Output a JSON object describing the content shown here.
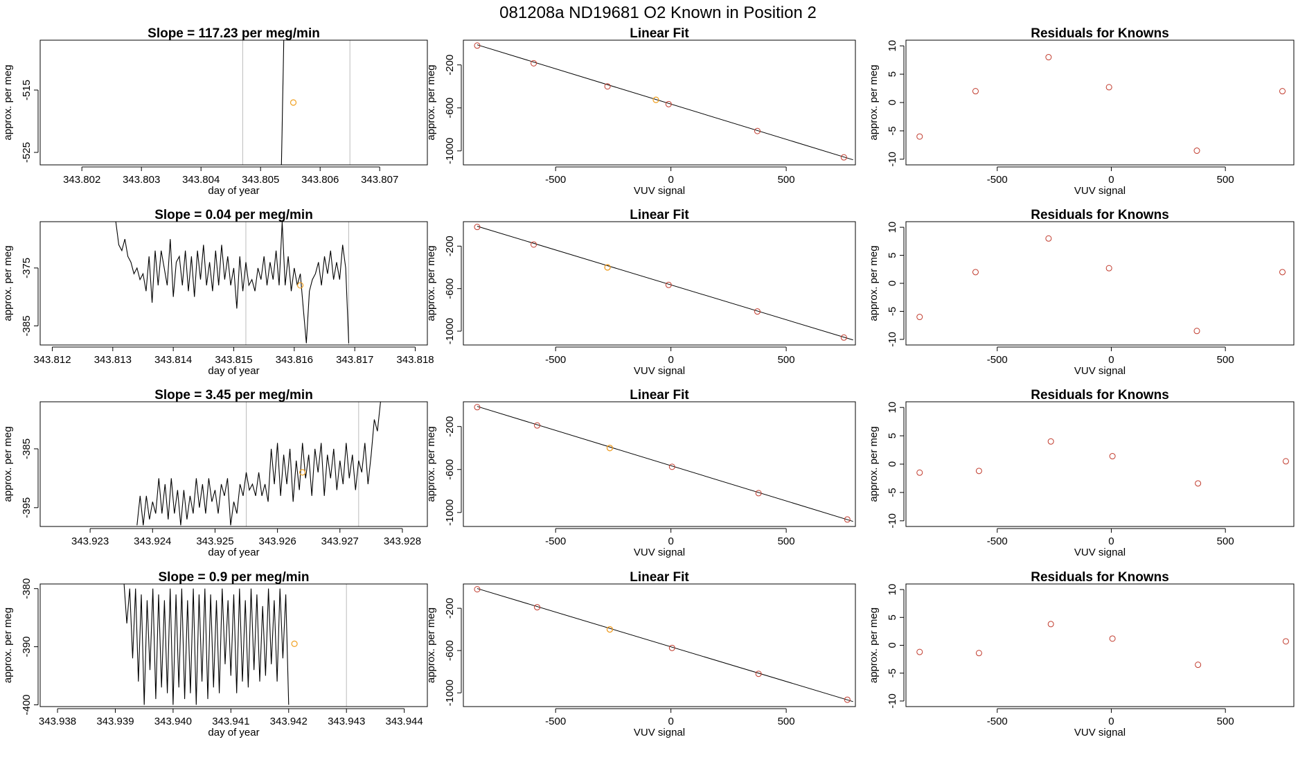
{
  "figure_title": "081208a      ND19681    O2 Known in Position  2",
  "colors": {
    "series": "#000000",
    "known_point": "#c0392b",
    "highlight_point": "#f0a020",
    "vline": "#bbbbbb",
    "frame": "#000000"
  },
  "chart_data": [
    {
      "type": "line",
      "title": "Slope =  117.23  per meg/min",
      "xlabel": "day of year",
      "ylabel": "approx. per meg",
      "xlim": [
        343.8013,
        343.8078
      ],
      "ylim": [
        -527,
        -507
      ],
      "xticks": [
        343.802,
        343.803,
        343.804,
        343.805,
        343.806,
        343.807
      ],
      "xtick_labels": [
        "343.802",
        "343.803",
        "343.804",
        "343.805",
        "343.806",
        "343.807"
      ],
      "yticks": [
        -525,
        -515
      ],
      "ytick_labels": [
        "-525",
        "-515"
      ],
      "vlines": [
        343.8047,
        343.8065
      ],
      "trace": {
        "x0": 343.80535,
        "dx": 1e-05,
        "y": [
          -527,
          -522,
          -517,
          -512,
          -507
        ]
      },
      "highlight": {
        "x": 343.80555,
        "y": -517
      }
    },
    {
      "type": "line",
      "title": "Slope =  0.04  per meg/min",
      "xlabel": "day of year",
      "ylabel": "approx. per meg",
      "xlim": [
        343.8118,
        343.8182
      ],
      "ylim": [
        -388.3,
        -367.0
      ],
      "xticks": [
        343.812,
        343.813,
        343.814,
        343.815,
        343.816,
        343.817,
        343.818
      ],
      "xtick_labels": [
        "343.812",
        "343.813",
        "343.814",
        "343.815",
        "343.816",
        "343.817",
        "343.818"
      ],
      "yticks": [
        -385,
        -375
      ],
      "ytick_labels": [
        "-385",
        "-375"
      ],
      "vlines": [
        343.8152,
        343.8169
      ],
      "trace": {
        "x0": 343.81305,
        "dx": 5e-05,
        "y": [
          -367,
          -371,
          -372,
          -370,
          -373,
          -374,
          -376,
          -375,
          -377,
          -376,
          -379,
          -373,
          -381,
          -372,
          -378,
          -372,
          -375,
          -378,
          -370,
          -380,
          -374,
          -373,
          -378,
          -372,
          -379,
          -373,
          -380,
          -372,
          -377,
          -371,
          -378,
          -374,
          -379,
          -372,
          -378,
          -371,
          -377,
          -373,
          -378,
          -375,
          -382,
          -373,
          -379,
          -374,
          -378,
          -377,
          -379,
          -375,
          -377,
          -373,
          -378,
          -374,
          -377,
          -372,
          -378,
          -367,
          -378,
          -373,
          -379,
          -375,
          -378,
          -376,
          -382,
          -388,
          -379,
          -377,
          -376,
          -374,
          -378,
          -373,
          -376,
          -372,
          -377,
          -374,
          -377,
          -371,
          -375,
          -388
        ]
      },
      "highlight": {
        "x": 343.8161,
        "y": -378
      }
    },
    {
      "type": "line",
      "title": "Slope =  3.45  per meg/min",
      "xlabel": "day of year",
      "ylabel": "approx. per meg",
      "xlim": [
        343.9222,
        343.9284
      ],
      "ylim": [
        -398.2,
        -377.0
      ],
      "xticks": [
        343.923,
        343.924,
        343.925,
        343.926,
        343.927,
        343.928
      ],
      "xtick_labels": [
        "343.923",
        "343.924",
        "343.925",
        "343.926",
        "343.927",
        "343.928"
      ],
      "yticks": [
        -395,
        -385
      ],
      "ytick_labels": [
        "-395",
        "-385"
      ],
      "vlines": [
        343.9255,
        343.9273
      ],
      "trace": {
        "x0": 343.92375,
        "dx": 5e-05,
        "y": [
          -398,
          -393,
          -398,
          -393,
          -397,
          -394,
          -396,
          -390,
          -396,
          -391,
          -397,
          -390,
          -396,
          -392,
          -398,
          -392,
          -397,
          -393,
          -396,
          -390,
          -395,
          -391,
          -396,
          -390,
          -394,
          -392,
          -396,
          -391,
          -393,
          -390,
          -398,
          -394,
          -396,
          -391,
          -393,
          -389,
          -392,
          -391,
          -393,
          -389,
          -393,
          -391,
          -394,
          -385,
          -391,
          -384,
          -393,
          -386,
          -391,
          -385,
          -394,
          -387,
          -392,
          -384,
          -390,
          -386,
          -393,
          -385,
          -389,
          -384,
          -393,
          -386,
          -390,
          -385,
          -392,
          -387,
          -391,
          -384,
          -390,
          -386,
          -392,
          -387,
          -389,
          -384,
          -391,
          -386,
          -380,
          -382,
          -377
        ]
      },
      "highlight": {
        "x": 343.9264,
        "y": -389
      }
    },
    {
      "type": "line",
      "title": "Slope =  0.9  per meg/min",
      "xlabel": "day of year",
      "ylabel": "approx. per meg",
      "xlim": [
        343.9377,
        343.9444
      ],
      "ylim": [
        -400.3,
        -379.2
      ],
      "xticks": [
        343.938,
        343.939,
        343.94,
        343.941,
        343.942,
        343.943,
        343.944
      ],
      "xtick_labels": [
        "343.938",
        "343.939",
        "343.940",
        "343.941",
        "343.942",
        "343.943",
        "343.944"
      ],
      "yticks": [
        -400,
        -390,
        -380
      ],
      "ytick_labels": [
        "-400",
        "-390",
        "-380"
      ],
      "vlines": [
        343.943
      ],
      "trace": {
        "x0": 343.93915,
        "dx": 5e-05,
        "y": [
          -379,
          -386,
          -380,
          -392,
          -380,
          -396,
          -381,
          -400,
          -382,
          -394,
          -380,
          -399,
          -381,
          -397,
          -382,
          -398,
          -380,
          -400,
          -381,
          -397,
          -380,
          -399,
          -382,
          -398,
          -380,
          -400,
          -381,
          -396,
          -380,
          -399,
          -381,
          -397,
          -382,
          -398,
          -380,
          -393,
          -382,
          -395,
          -381,
          -398,
          -380,
          -396,
          -382,
          -397,
          -380,
          -394,
          -381,
          -396,
          -383,
          -395,
          -380,
          -393,
          -382,
          -396,
          -380,
          -392,
          -381,
          -400
        ]
      },
      "highlight": {
        "x": 343.9421,
        "y": -389.5
      }
    },
    {
      "type": "scatter",
      "title": "Linear Fit",
      "xlabel": "VUV signal",
      "ylabel": "approx. per meg",
      "xlim": [
        -900,
        800
      ],
      "ylim": [
        -1130,
        30
      ],
      "xticks": [
        -500,
        0,
        500
      ],
      "xtick_labels": [
        "-500",
        "0",
        "500"
      ],
      "yticks": [
        -1000,
        -600,
        -200
      ],
      "ytick_labels": [
        "-1000",
        "-600",
        "-200"
      ],
      "fit": {
        "x": [
          -840,
          790
        ],
        "y": [
          -13,
          -1083
        ]
      },
      "points": {
        "x": [
          -840,
          -595,
          -275,
          -10,
          375,
          750
        ],
        "y": [
          -20,
          -185,
          -400,
          -565,
          -815,
          -1060
        ]
      },
      "highlight": {
        "x": -65,
        "y": -525
      }
    },
    {
      "type": "scatter",
      "title": "Linear Fit",
      "xlabel": "VUV signal",
      "ylabel": "approx. per meg",
      "xlim": [
        -900,
        800
      ],
      "ylim": [
        -1130,
        30
      ],
      "xticks": [
        -500,
        0,
        500
      ],
      "xtick_labels": [
        "-500",
        "0",
        "500"
      ],
      "yticks": [
        -1000,
        -600,
        -200
      ],
      "ytick_labels": [
        "-1000",
        "-600",
        "-200"
      ],
      "fit": {
        "x": [
          -840,
          790
        ],
        "y": [
          -13,
          -1083
        ]
      },
      "points": {
        "x": [
          -840,
          -595,
          -275,
          -10,
          375,
          750
        ],
        "y": [
          -20,
          -185,
          -400,
          -565,
          -815,
          -1060
        ]
      },
      "highlight": {
        "x": -275,
        "y": -400
      }
    },
    {
      "type": "scatter",
      "title": "Linear Fit",
      "xlabel": "VUV signal",
      "ylabel": "approx. per meg",
      "xlim": [
        -900,
        800
      ],
      "ylim": [
        -1130,
        30
      ],
      "xticks": [
        -500,
        0,
        500
      ],
      "xtick_labels": [
        "-500",
        "0",
        "500"
      ],
      "yticks": [
        -1000,
        -600,
        -200
      ],
      "ytick_labels": [
        "-1000",
        "-600",
        "-200"
      ],
      "fit": {
        "x": [
          -840,
          790
        ],
        "y": [
          -13,
          -1083
        ]
      },
      "points": {
        "x": [
          -840,
          -580,
          -265,
          5,
          380,
          765
        ],
        "y": [
          -20,
          -190,
          -400,
          -575,
          -820,
          -1065
        ]
      },
      "highlight": {
        "x": -265,
        "y": -400
      }
    },
    {
      "type": "scatter",
      "title": "Linear Fit",
      "xlabel": "VUV signal",
      "ylabel": "approx. per meg",
      "xlim": [
        -900,
        800
      ],
      "ylim": [
        -1130,
        30
      ],
      "xticks": [
        -500,
        0,
        500
      ],
      "xtick_labels": [
        "-500",
        "0",
        "500"
      ],
      "yticks": [
        -1000,
        -600,
        -200
      ],
      "ytick_labels": [
        "-1000",
        "-600",
        "-200"
      ],
      "fit": {
        "x": [
          -840,
          790
        ],
        "y": [
          -13,
          -1083
        ]
      },
      "points": {
        "x": [
          -840,
          -580,
          -265,
          5,
          380,
          765
        ],
        "y": [
          -20,
          -190,
          -400,
          -575,
          -820,
          -1065
        ]
      },
      "highlight": {
        "x": -265,
        "y": -400
      }
    },
    {
      "type": "scatter",
      "title": "Residuals for Knowns",
      "xlabel": "VUV signal",
      "ylabel": "approx. per meg",
      "xlim": [
        -900,
        800
      ],
      "ylim": [
        -11,
        11
      ],
      "xticks": [
        -500,
        0,
        500
      ],
      "xtick_labels": [
        "-500",
        "0",
        "500"
      ],
      "yticks": [
        -10,
        -5,
        0,
        5,
        10
      ],
      "ytick_labels": [
        "-10",
        "-5",
        "0",
        "5",
        "10"
      ],
      "points": {
        "x": [
          -840,
          -595,
          -275,
          -10,
          375,
          750
        ],
        "y": [
          -6,
          2,
          8,
          2.7,
          -8.5,
          2
        ]
      }
    },
    {
      "type": "scatter",
      "title": "Residuals for Knowns",
      "xlabel": "VUV signal",
      "ylabel": "approx. per meg",
      "xlim": [
        -900,
        800
      ],
      "ylim": [
        -11,
        11
      ],
      "xticks": [
        -500,
        0,
        500
      ],
      "xtick_labels": [
        "-500",
        "0",
        "500"
      ],
      "yticks": [
        -10,
        -5,
        0,
        5,
        10
      ],
      "ytick_labels": [
        "-10",
        "-5",
        "0",
        "5",
        "10"
      ],
      "points": {
        "x": [
          -840,
          -595,
          -275,
          -10,
          375,
          750
        ],
        "y": [
          -6,
          2,
          8,
          2.7,
          -8.5,
          2
        ]
      }
    },
    {
      "type": "scatter",
      "title": "Residuals for Knowns",
      "xlabel": "VUV signal",
      "ylabel": "approx. per meg",
      "xlim": [
        -900,
        800
      ],
      "ylim": [
        -11,
        11
      ],
      "xticks": [
        -500,
        0,
        500
      ],
      "xtick_labels": [
        "-500",
        "0",
        "500"
      ],
      "yticks": [
        -10,
        -5,
        0,
        5,
        10
      ],
      "ytick_labels": [
        "-10",
        "-5",
        "0",
        "5",
        "10"
      ],
      "points": {
        "x": [
          -840,
          -580,
          -265,
          5,
          380,
          765
        ],
        "y": [
          -1.5,
          -1.2,
          4,
          1.4,
          -3.4,
          0.5
        ]
      }
    },
    {
      "type": "scatter",
      "title": "Residuals for Knowns",
      "xlabel": "VUV signal",
      "ylabel": "approx. per meg",
      "xlim": [
        -900,
        800
      ],
      "ylim": [
        -11,
        11
      ],
      "xticks": [
        -500,
        0,
        500
      ],
      "xtick_labels": [
        "-500",
        "0",
        "500"
      ],
      "yticks": [
        -10,
        -5,
        0,
        5,
        10
      ],
      "ytick_labels": [
        "-10",
        "-5",
        "0",
        "5",
        "10"
      ],
      "points": {
        "x": [
          -840,
          -580,
          -265,
          5,
          380,
          765
        ],
        "y": [
          -1.2,
          -1.4,
          3.8,
          1.2,
          -3.5,
          0.7
        ]
      }
    }
  ]
}
